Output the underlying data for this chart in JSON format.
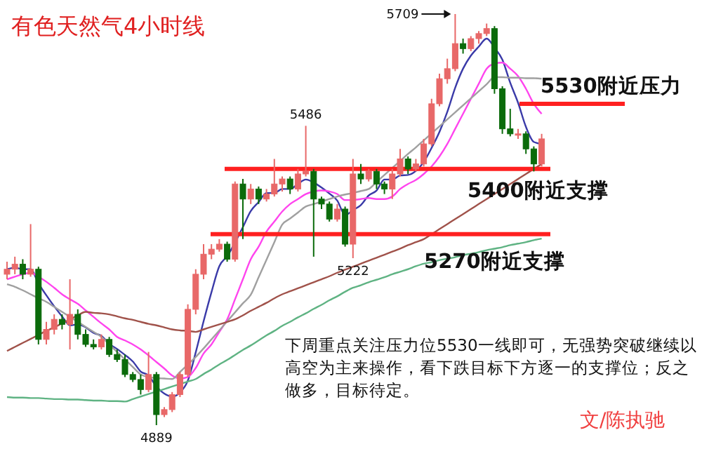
{
  "chart_data": {
    "type": "candlestick",
    "title": "有色天然气4小时线",
    "categories": [
      null,
      null,
      null,
      null,
      null,
      null,
      null,
      null,
      null,
      null,
      null,
      null,
      null,
      null,
      null,
      null,
      null,
      null,
      null,
      null,
      null,
      null,
      null,
      null,
      null,
      null,
      null,
      null,
      null,
      null,
      null,
      null,
      null,
      null,
      null,
      null,
      null,
      null,
      null,
      null,
      null,
      null,
      null,
      null,
      null,
      null,
      null,
      null,
      null,
      null,
      null,
      null,
      null,
      null,
      null,
      null,
      null,
      null,
      null,
      null,
      null,
      null,
      null,
      null,
      null,
      null,
      null,
      null,
      null
    ],
    "ohlc": [
      [
        5190,
        5215,
        5180,
        5200
      ],
      [
        5200,
        5225,
        5190,
        5210
      ],
      [
        5210,
        5220,
        5180,
        5190
      ],
      [
        5190,
        5290,
        5185,
        5200
      ],
      [
        5200,
        5205,
        5050,
        5060
      ],
      [
        5060,
        5095,
        5050,
        5080
      ],
      [
        5080,
        5110,
        5070,
        5100
      ],
      [
        5100,
        5110,
        5080,
        5090
      ],
      [
        5090,
        5180,
        5040,
        5110
      ],
      [
        5110,
        5120,
        5060,
        5070
      ],
      [
        5070,
        5080,
        5045,
        5050
      ],
      [
        5050,
        5060,
        5040,
        5045
      ],
      [
        5045,
        5070,
        5040,
        5060
      ],
      [
        5060,
        5065,
        5025,
        5030
      ],
      [
        5030,
        5040,
        5015,
        5020
      ],
      [
        5020,
        5030,
        4985,
        4990
      ],
      [
        4990,
        4995,
        4975,
        4980
      ],
      [
        4980,
        4990,
        4950,
        4960
      ],
      [
        4960,
        5035,
        4955,
        4990
      ],
      [
        4990,
        4995,
        4889,
        4910
      ],
      [
        4910,
        4925,
        4905,
        4920
      ],
      [
        4920,
        4955,
        4915,
        4950
      ],
      [
        4950,
        4995,
        4945,
        4990
      ],
      [
        4990,
        5130,
        4985,
        5120
      ],
      [
        5120,
        5200,
        5110,
        5190
      ],
      [
        5190,
        5250,
        5180,
        5230
      ],
      [
        5230,
        5250,
        5220,
        5240
      ],
      [
        5240,
        5260,
        5235,
        5250
      ],
      [
        5250,
        5255,
        5215,
        5220
      ],
      [
        5220,
        5375,
        5215,
        5370
      ],
      [
        5370,
        5380,
        5260,
        5340
      ],
      [
        5340,
        5370,
        5330,
        5360
      ],
      [
        5360,
        5365,
        5330,
        5340
      ],
      [
        5340,
        5360,
        5335,
        5350
      ],
      [
        5350,
        5420,
        5345,
        5370
      ],
      [
        5370,
        5385,
        5355,
        5380
      ],
      [
        5380,
        5385,
        5350,
        5360
      ],
      [
        5360,
        5400,
        5355,
        5390
      ],
      [
        5390,
        5486,
        5385,
        5395
      ],
      [
        5395,
        5400,
        5225,
        5340
      ],
      [
        5340,
        5345,
        5320,
        5330
      ],
      [
        5330,
        5335,
        5295,
        5300
      ],
      [
        5300,
        5330,
        5295,
        5320
      ],
      [
        5320,
        5325,
        5245,
        5250
      ],
      [
        5250,
        5420,
        5222,
        5390
      ],
      [
        5390,
        5410,
        5370,
        5380
      ],
      [
        5380,
        5400,
        5375,
        5395
      ],
      [
        5395,
        5400,
        5360,
        5370
      ],
      [
        5370,
        5375,
        5350,
        5360
      ],
      [
        5360,
        5400,
        5340,
        5390
      ],
      [
        5390,
        5440,
        5385,
        5420
      ],
      [
        5420,
        5425,
        5390,
        5400
      ],
      [
        5400,
        5420,
        5395,
        5410
      ],
      [
        5410,
        5460,
        5405,
        5450
      ],
      [
        5450,
        5540,
        5445,
        5530
      ],
      [
        5530,
        5590,
        5525,
        5580
      ],
      [
        5580,
        5620,
        5570,
        5600
      ],
      [
        5600,
        5709,
        5595,
        5650
      ],
      [
        5650,
        5660,
        5630,
        5640
      ],
      [
        5640,
        5665,
        5635,
        5660
      ],
      [
        5660,
        5675,
        5650,
        5670
      ],
      [
        5670,
        5690,
        5665,
        5680
      ],
      [
        5680,
        5685,
        5550,
        5560
      ],
      [
        5560,
        5565,
        5470,
        5480
      ],
      [
        5480,
        5520,
        5465,
        5470
      ],
      [
        5470,
        5480,
        5460,
        5470
      ],
      [
        5470,
        5475,
        5430,
        5440
      ],
      [
        5440,
        5445,
        5395,
        5410
      ],
      [
        5410,
        5470,
        5405,
        5460
      ]
    ],
    "series": [
      {
        "type": "line",
        "color": "#3a3aa8",
        "values": [
          5200,
          5203,
          5200,
          5200,
          5172,
          5148,
          5126,
          5106,
          5088,
          5090,
          5084,
          5073,
          5067,
          5051,
          5041,
          5029,
          5016,
          4996,
          4988,
          4966,
          4952,
          4946,
          4954,
          4978,
          5034,
          5096,
          5154,
          5206,
          5226,
          null,
          5284,
          5316,
          5334,
          5352,
          5352,
          5360,
          5360,
          5370,
          5379,
          5373,
          5363,
          5351,
          5337,
          5308,
          5318,
          5328,
          5347,
          5357,
          5379,
          5379,
          5387,
          5388,
          5396,
          5414,
          5442,
          5474,
          5514,
          5562,
          5600,
          5626,
          5644,
          5660,
          5642,
          5618,
          5572,
          5532,
          5484,
          5454,
          5450
        ]
      },
      {
        "type": "line",
        "color": "#ff44ee",
        "values": [
          5180,
          5185,
          5190,
          5193,
          5185,
          5175,
          5163,
          5150,
          5140,
          5131,
          5118,
          5105,
          5092,
          5080,
          5065,
          5058,
          5050,
          5040,
          5028,
          5015,
          5002,
          4988,
          4982,
          4985,
          5003,
          5032,
          5050,
          5075,
          5100,
          5140,
          5180,
          5220,
          5245,
          5275,
          5295,
          5315,
          5330,
          5340,
          5350,
          5355,
          5357,
          5355,
          5350,
          5338,
          5338,
          5340,
          5342,
          5340,
          5340,
          5345,
          5360,
          5370,
          5378,
          5390,
          5405,
          5425,
          5450,
          5480,
          5510,
          5540,
          5570,
          5600,
          5610,
          5612,
          5600,
          5585,
          5560,
          5530,
          5510
        ]
      },
      {
        "type": "line",
        "color": "#a0a0a0",
        "values": [
          5170,
          5165,
          5158,
          5150,
          5142,
          5135,
          5125,
          5115,
          5105,
          5095,
          5085,
          5075,
          5065,
          5050,
          5035,
          5020,
          5005,
          4990,
          4985,
          4983,
          4982,
          4981,
          4995,
          5010,
          5025,
          5042,
          5060,
          5078,
          5096,
          5114,
          5132,
          5149,
          5184,
          5219,
          5254,
          5289,
          5301,
          5313,
          5325,
          5330,
          5335,
          5340,
          5345,
          5349,
          5352,
          5356,
          5360,
          5374,
          5388,
          5402,
          5416,
          5430,
          5443,
          5457,
          5471,
          5485,
          5499,
          5513,
          5527,
          5541,
          5555,
          5569,
          5583,
          5583,
          5582,
          5582,
          5581,
          5581,
          5580
        ]
      },
      {
        "type": "line",
        "color": "#a0524a",
        "values": [
          5037,
          5045,
          5053,
          5061,
          5069,
          5077,
          5084,
          5092,
          5100,
          5108,
          5115,
          5113,
          5112,
          5110,
          5106,
          5102,
          5099,
          5095,
          5091,
          5088,
          5084,
          5080,
          5078,
          5077,
          5075,
          5080,
          5085,
          5090,
          5095,
          5100,
          5108,
          5117,
          5125,
          5133,
          5142,
          5150,
          5156,
          5162,
          5168,
          5174,
          5180,
          5186,
          5193,
          5199,
          5205,
          5211,
          5217,
          5223,
          5229,
          5235,
          5241,
          5248,
          5254,
          5260,
          5270,
          5280,
          5290,
          5300,
          5310,
          5320,
          5330,
          5340,
          5350,
          5360,
          5370,
          5380,
          5390,
          5400,
          5410
        ]
      },
      {
        "type": "line",
        "color": "#5fb383",
        "values": [
          4945,
          4944,
          4944,
          4943,
          4943,
          4942,
          4941,
          4941,
          4940,
          4940,
          4939,
          4938,
          4938,
          4937,
          4937,
          4936,
          4941,
          4946,
          4951,
          4956,
          4961,
          4966,
          4971,
          4976,
          4981,
          4991,
          5000,
          5010,
          5019,
          5029,
          5039,
          5048,
          5058,
          5068,
          5077,
          5087,
          5095,
          5104,
          5112,
          5121,
          5129,
          5138,
          5146,
          5155,
          5163,
          5168,
          5174,
          5179,
          5184,
          5190,
          5195,
          5200,
          5206,
          5211,
          5214,
          5218,
          5221,
          5224,
          5228,
          5231,
          5234,
          5238,
          5241,
          5244,
          5248,
          5251,
          5254,
          5258,
          5261
        ]
      }
    ],
    "ref_lines": [
      {
        "axis": "y",
        "value": 5530,
        "label": "5530附近压力",
        "color": "#ff2020"
      },
      {
        "axis": "y",
        "value": 5400,
        "label": "5400附近支撑",
        "color": "#ff2020"
      },
      {
        "axis": "y",
        "value": 5270,
        "label": "5270附近支撑",
        "color": "#ff2020"
      }
    ],
    "annotations": [
      "5709",
      {
        "text": "5486",
        "y": 5486
      },
      {
        "text": "5222",
        "y": 5222
      },
      {
        "text": "4889",
        "y": 4889
      },
      "下周重点关注压力位5530一线即可，无强势突破继续以高空为主来操作，看下跌目标下方逐一的支撑位；反之做多，目标待定。",
      "文/陈执驰"
    ]
  }
}
